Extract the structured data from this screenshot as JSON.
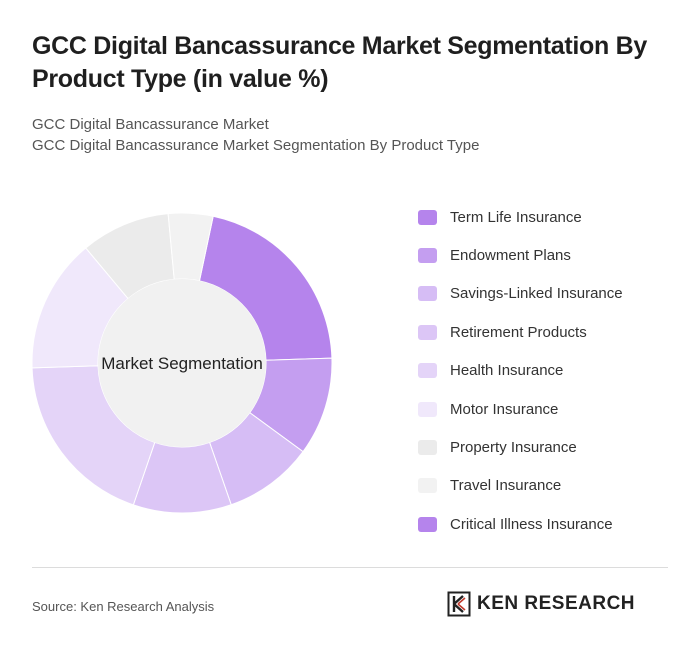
{
  "header": {
    "title": "GCC Digital Bancassurance Market Segmentation By Product Type (in value %)",
    "subtitle_line1": "GCC Digital Bancassurance Market",
    "subtitle_line2": "GCC Digital Bancassurance Market Segmentation By Product Type"
  },
  "chart_data": {
    "type": "pie",
    "center_label": "Market Segmentation",
    "categories": [
      "Term Life Insurance",
      "Endowment Plans",
      "Savings-Linked Insurance",
      "Retirement Products",
      "Health Insurance",
      "Motor Insurance",
      "Property Insurance",
      "Travel Insurance",
      "Critical Illness Insurance"
    ],
    "values": [
      22,
      11,
      10,
      11,
      20,
      15,
      10,
      5,
      0
    ],
    "colors": [
      "#b584ec",
      "#c49ef0",
      "#d6bdf5",
      "#dcc6f6",
      "#e4d4f8",
      "#f0e8fb",
      "#ebebeb",
      "#f2f2f2",
      "#b584ec"
    ],
    "legend_position": "right"
  },
  "footer": {
    "source": "Source: Ken Research Analysis",
    "logo_text": "KEN RESEARCH"
  }
}
